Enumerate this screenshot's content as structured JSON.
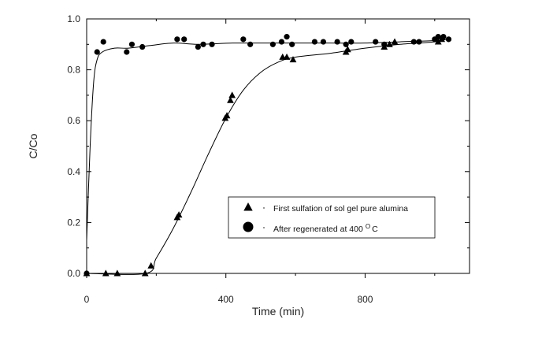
{
  "chart_data": {
    "type": "scatter",
    "title": "",
    "xlabel": "Time (min)",
    "ylabel": "C/Co",
    "xlim": [
      0,
      1100
    ],
    "ylim": [
      0,
      1.0
    ],
    "x_ticks": [
      0,
      400,
      800
    ],
    "x_tick_labels": [
      "0",
      "400",
      "800"
    ],
    "y_ticks": [
      0,
      0.2,
      0.4,
      0.6,
      0.8,
      1.0
    ],
    "y_tick_labels": [
      "0.0",
      "0.2",
      "0.4",
      "0.6",
      "0.8",
      "1.0"
    ],
    "grid": false,
    "legend_position": "lower-right",
    "series": [
      {
        "name": "First sulfation of sol gel pure alumina",
        "legend_label": "First sulfation of sol gel pure alumina",
        "marker": "triangle",
        "color": "#000000",
        "points": [
          [
            0,
            0.0
          ],
          [
            55,
            0.0
          ],
          [
            88,
            0.0
          ],
          [
            168,
            0.0
          ],
          [
            185,
            0.03
          ],
          [
            260,
            0.22
          ],
          [
            265,
            0.23
          ],
          [
            398,
            0.61
          ],
          [
            403,
            0.62
          ],
          [
            413,
            0.68
          ],
          [
            418,
            0.7
          ],
          [
            563,
            0.85
          ],
          [
            575,
            0.85
          ],
          [
            593,
            0.84
          ],
          [
            745,
            0.87
          ],
          [
            750,
            0.88
          ],
          [
            855,
            0.89
          ],
          [
            870,
            0.9
          ],
          [
            885,
            0.91
          ],
          [
            1010,
            0.91
          ],
          [
            1020,
            0.92
          ]
        ],
        "fit": [
          [
            0,
            0.0
          ],
          [
            170,
            0.0
          ],
          [
            200,
            0.06
          ],
          [
            250,
            0.18
          ],
          [
            300,
            0.32
          ],
          [
            350,
            0.47
          ],
          [
            400,
            0.61
          ],
          [
            450,
            0.72
          ],
          [
            500,
            0.79
          ],
          [
            550,
            0.83
          ],
          [
            600,
            0.85
          ],
          [
            700,
            0.865
          ],
          [
            800,
            0.885
          ],
          [
            900,
            0.9
          ],
          [
            1000,
            0.91
          ],
          [
            1030,
            0.92
          ]
        ]
      },
      {
        "name": "After regenerated at 400 °C",
        "legend_label": "After regenerated at 400",
        "legend_sup": "O",
        "legend_unit": "C",
        "marker": "circle",
        "color": "#000000",
        "points": [
          [
            0,
            0.0
          ],
          [
            30,
            0.87
          ],
          [
            48,
            0.91
          ],
          [
            115,
            0.87
          ],
          [
            130,
            0.9
          ],
          [
            160,
            0.89
          ],
          [
            260,
            0.92
          ],
          [
            280,
            0.92
          ],
          [
            320,
            0.89
          ],
          [
            335,
            0.9
          ],
          [
            360,
            0.9
          ],
          [
            450,
            0.92
          ],
          [
            470,
            0.9
          ],
          [
            535,
            0.9
          ],
          [
            560,
            0.91
          ],
          [
            575,
            0.93
          ],
          [
            590,
            0.9
          ],
          [
            655,
            0.91
          ],
          [
            680,
            0.91
          ],
          [
            720,
            0.91
          ],
          [
            745,
            0.9
          ],
          [
            760,
            0.91
          ],
          [
            830,
            0.91
          ],
          [
            855,
            0.9
          ],
          [
            940,
            0.91
          ],
          [
            955,
            0.91
          ],
          [
            1000,
            0.92
          ],
          [
            1010,
            0.93
          ],
          [
            1025,
            0.93
          ],
          [
            1040,
            0.92
          ]
        ],
        "fit": [
          [
            0,
            0.13
          ],
          [
            10,
            0.5
          ],
          [
            20,
            0.75
          ],
          [
            30,
            0.84
          ],
          [
            45,
            0.87
          ],
          [
            80,
            0.885
          ],
          [
            120,
            0.885
          ],
          [
            180,
            0.895
          ],
          [
            250,
            0.905
          ],
          [
            320,
            0.9
          ],
          [
            420,
            0.905
          ],
          [
            520,
            0.905
          ],
          [
            600,
            0.905
          ],
          [
            700,
            0.905
          ],
          [
            800,
            0.905
          ],
          [
            900,
            0.91
          ],
          [
            1000,
            0.915
          ],
          [
            1040,
            0.92
          ]
        ]
      }
    ]
  }
}
